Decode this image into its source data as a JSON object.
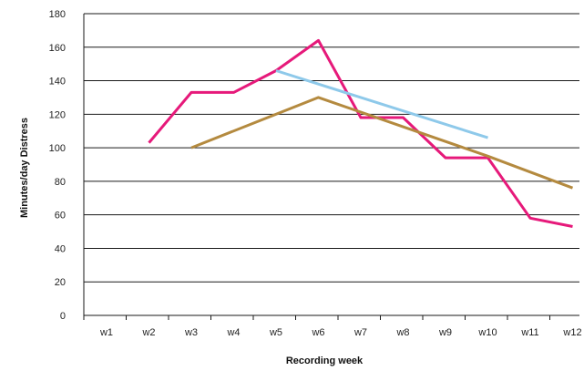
{
  "chart_data": {
    "type": "line",
    "x": [
      "w1",
      "w2",
      "w3",
      "w4",
      "w5",
      "w6",
      "w7",
      "w8",
      "w9",
      "w10",
      "w11",
      "w12"
    ],
    "xlabel": "Recording week",
    "ylabel": "Minutes/day Distress",
    "ylim": [
      0,
      180
    ],
    "yticks": [
      0,
      20,
      40,
      60,
      80,
      100,
      120,
      140,
      160,
      180
    ],
    "grid": "horizontal",
    "series": [
      {
        "color": "#e6197a",
        "values": [
          null,
          103,
          133,
          133,
          146,
          164,
          118,
          118,
          94,
          94,
          58,
          53
        ]
      },
      {
        "color": "#b48a3f",
        "values": [
          null,
          null,
          100,
          null,
          null,
          130,
          null,
          null,
          null,
          95,
          null,
          76
        ]
      },
      {
        "color": "#8ec9ea",
        "values": [
          null,
          null,
          null,
          null,
          146,
          null,
          null,
          null,
          null,
          106,
          null,
          null
        ]
      }
    ]
  }
}
